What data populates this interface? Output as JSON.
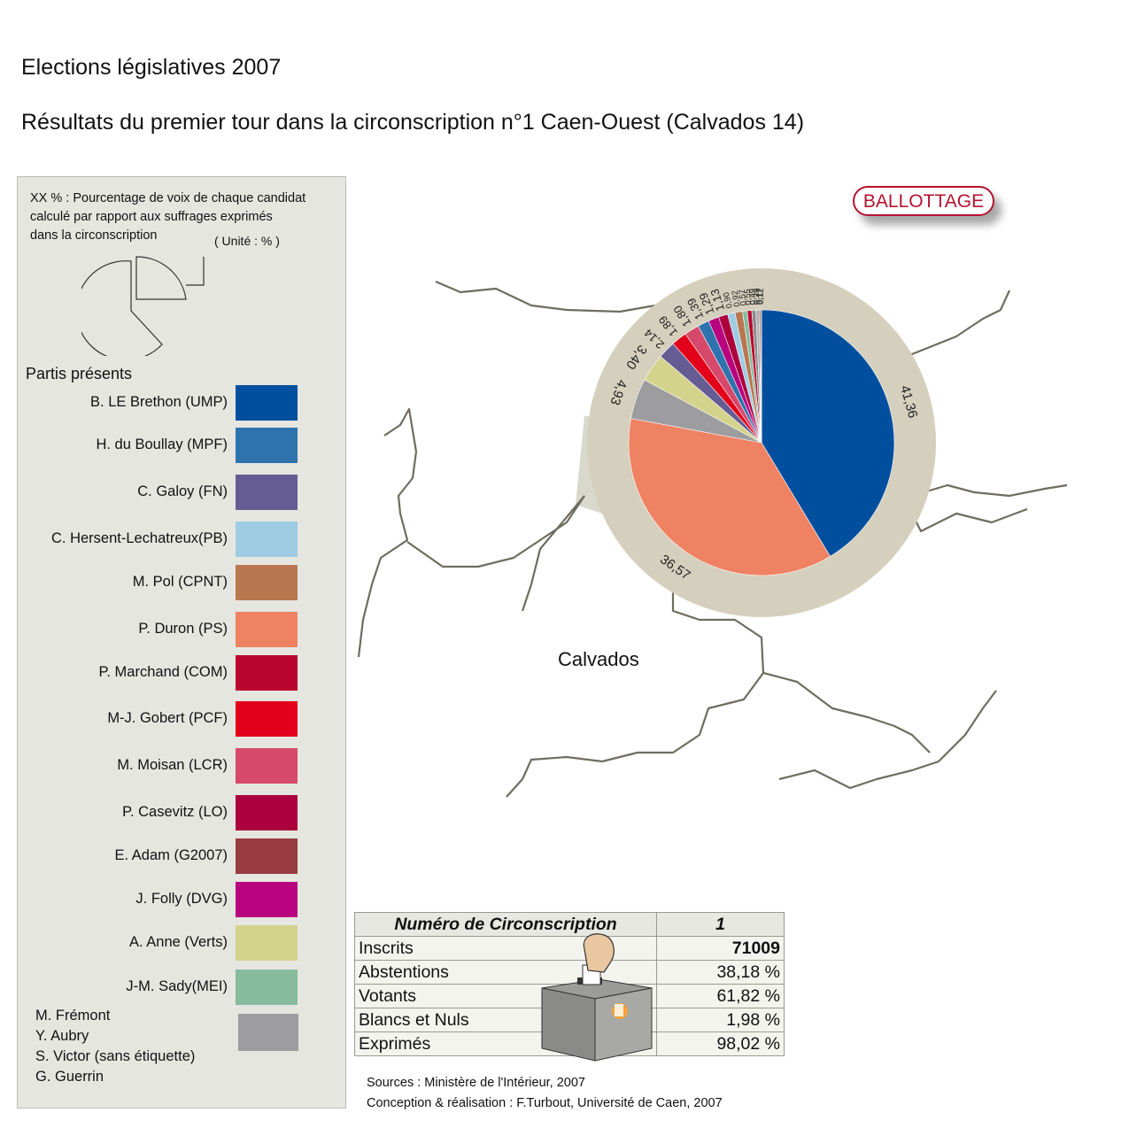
{
  "title": "Elections législatives 2007",
  "subtitle": "Résultats du premier tour dans la circonscription n°1 Caen-Ouest (Calvados 14)",
  "legend": {
    "note_lines": [
      "XX % : Pourcentage de voix de chaque candidat",
      "calculé par rapport aux suffrages exprimés",
      "dans la circonscription"
    ],
    "unit": "( Unité : % )",
    "parties_title": "Partis présents",
    "parties": [
      {
        "label": "B. LE Brethon (UMP)",
        "color": "#004f9f"
      },
      {
        "label": "H. du Boullay (MPF)",
        "color": "#2e73ae"
      },
      {
        "label": "C. Galoy (FN)",
        "color": "#655c93"
      },
      {
        "label": "C. Hersent-Lechatreux(PB)",
        "color": "#9ecce3"
      },
      {
        "label": "M. Pol (CPNT)",
        "color": "#b87751"
      },
      {
        "label": "P. Duron (PS)",
        "color": "#ef8263"
      },
      {
        "label": "P. Marchand (COM)",
        "color": "#b9062f"
      },
      {
        "label": "M-J. Gobert (PCF)",
        "color": "#e2001a"
      },
      {
        "label": "M. Moisan (LCR)",
        "color": "#d6496a"
      },
      {
        "label": "P. Casevitz (LO)",
        "color": "#ab003d"
      },
      {
        "label": "E. Adam (G2007)",
        "color": "#993c41"
      },
      {
        "label": "J. Folly (DVG)",
        "color": "#b8047e"
      },
      {
        "label": "A. Anne (Verts)",
        "color": "#d3d38c"
      },
      {
        "label": "J-M. Sady(MEI)",
        "color": "#86bb9e"
      }
    ],
    "others": {
      "names": [
        "M. Frémont",
        "Y. Aubry",
        "S. Victor  (sans étiquette)",
        "G. Guerrin"
      ],
      "color": "#9d9d9f"
    }
  },
  "badge": "BALLOTTAGE",
  "map_label": "Calvados",
  "chart_data": {
    "type": "pie",
    "unit": "%",
    "slices": [
      {
        "label": "41,36",
        "value": 41.36,
        "color": "#004f9f"
      },
      {
        "label": "36,57",
        "value": 36.57,
        "color": "#ef8263"
      },
      {
        "label": "4,93",
        "value": 4.93,
        "color": "#9d9d9f"
      },
      {
        "label": "3,40",
        "value": 3.4,
        "color": "#d3d38c"
      },
      {
        "label": "2,14",
        "value": 2.14,
        "color": "#655c93"
      },
      {
        "label": "1,89",
        "value": 1.89,
        "color": "#e2001a"
      },
      {
        "label": "1,80",
        "value": 1.8,
        "color": "#d6496a"
      },
      {
        "label": "1,39",
        "value": 1.39,
        "color": "#2e73ae"
      },
      {
        "label": "1,29",
        "value": 1.29,
        "color": "#b8047e"
      },
      {
        "label": "1,13",
        "value": 1.13,
        "color": "#ab003d"
      },
      {
        "label": "0,90",
        "value": 0.9,
        "color": "#9ecce3"
      },
      {
        "label": "0,92",
        "value": 0.92,
        "color": "#b87751"
      },
      {
        "label": "0,57",
        "value": 0.57,
        "color": "#86bb9e"
      },
      {
        "label": "0,55",
        "value": 0.55,
        "color": "#b9062f"
      },
      {
        "label": "0,49",
        "value": 0.49,
        "color": "#8a8a8c"
      },
      {
        "label": "0,39",
        "value": 0.39,
        "color": "#b0b0b2"
      },
      {
        "label": "0,17",
        "value": 0.17,
        "color": "#993c41"
      },
      {
        "label": "0,12",
        "value": 0.12,
        "color": "#7a7a7c"
      }
    ]
  },
  "table": {
    "header": {
      "label": "Numéro de Circonscription",
      "value": "1"
    },
    "rows": [
      {
        "label": "Inscrits",
        "value": "71009"
      },
      {
        "label": "Abstentions",
        "value": "38,18 %"
      },
      {
        "label": "Votants",
        "value": "61,82 %"
      },
      {
        "label": "Blancs et Nuls",
        "value": "1,98 %"
      },
      {
        "label": "Exprimés",
        "value": "98,02 %"
      }
    ]
  },
  "sources": [
    "Sources : Ministère de l'Intérieur, 2007",
    "Conception & réalisation : F.Turbout, Université de Caen, 2007"
  ]
}
